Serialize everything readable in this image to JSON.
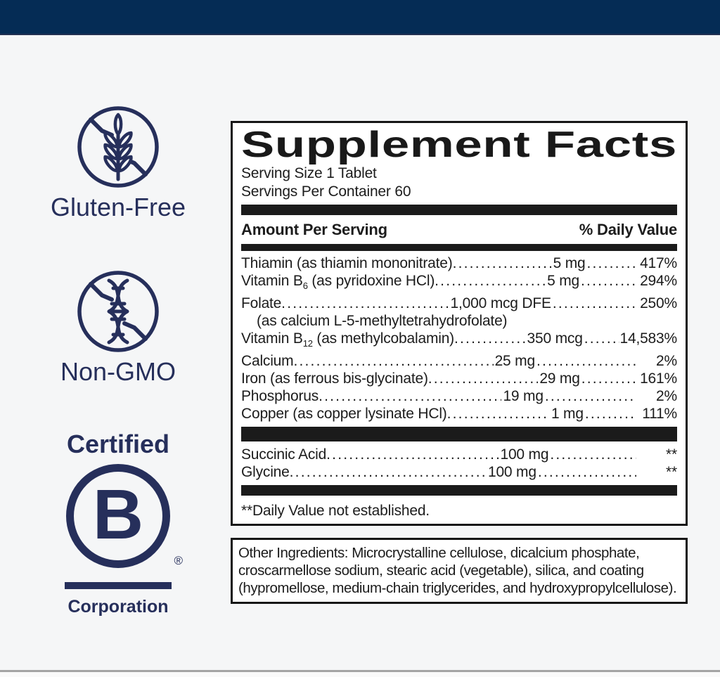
{
  "colors": {
    "top_bar": "#052c55",
    "badge_navy": "#262f5b",
    "label_black": "#1b1b1b",
    "page_background": "#f5f6f7"
  },
  "badges": {
    "gluten_free": {
      "label": "Gluten-Free",
      "icon": "wheat-crossed-circle"
    },
    "non_gmo": {
      "label": "Non-GMO",
      "icon": "dna-crossed-circle"
    },
    "b_corp": {
      "certified": "Certified",
      "letter": "B",
      "registered": "®",
      "corporation": "Corporation",
      "icon": "circled-b-logo"
    }
  },
  "facts": {
    "title": "Supplement Facts",
    "serving_size": "Serving Size 1 Tablet",
    "servings_per_container": "Servings Per Container 60",
    "columns": {
      "amount": "Amount Per Serving",
      "daily_value": "% Daily Value"
    },
    "rows": [
      {
        "name": "Thiamin (as thiamin mononitrate)",
        "amount": "5 mg",
        "dv": "417%"
      },
      {
        "name": "Vitamin B",
        "sub": "6",
        "name2": " (as pyridoxine HCl)",
        "amount": "5 mg",
        "dv": "294%"
      },
      {
        "name": "Folate",
        "amount": "1,000 mcg DFE",
        "dv": "250%"
      },
      {
        "indent": "(as calcium L-5-methyltetrahydrofolate)"
      },
      {
        "name": "Vitamin B",
        "sub": "12",
        "name2": " (as methylcobalamin)",
        "amount": "350 mcg",
        "dv": "14,583%"
      },
      {
        "name": "Calcium",
        "amount": "25 mg",
        "dv": "2%"
      },
      {
        "name": "Iron (as ferrous bis-glycinate)",
        "amount": "29 mg",
        "dv": "161%"
      },
      {
        "name": "Phosphorus",
        "amount": "19 mg",
        "dv": "2%"
      },
      {
        "name": "Copper (as copper lysinate HCl) ",
        "amount": "1 mg",
        "dv": "111%"
      }
    ],
    "rows2": [
      {
        "name": "Succinic Acid ",
        "amount": "100 mg",
        "dv": "**"
      },
      {
        "name": "Glycine",
        "amount": "100 mg",
        "dv": "**"
      }
    ],
    "footnote": "**Daily Value not established."
  },
  "other_ingredients": {
    "lines": [
      "Other Ingredients: Microcrystalline cellulose, dicalcium phosphate,",
      "croscarmellose sodium, stearic acid (vegetable), silica, and coating",
      "(hypromellose, medium-chain triglycerides, and hydroxypropylcellulose)."
    ]
  }
}
